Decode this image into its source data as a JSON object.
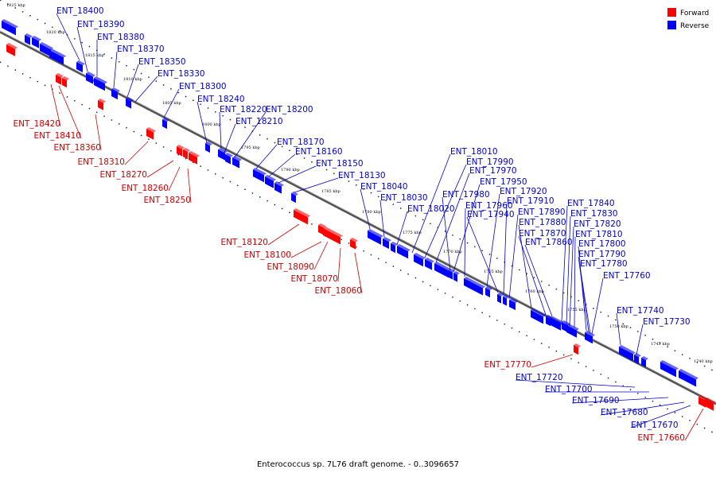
{
  "caption": "Enterococcus sp. 7L76 draft genome. - 0..3096657",
  "legend": [
    {
      "label": "Forward",
      "color": "#ff0000"
    },
    {
      "label": "Reverse",
      "color": "#0000ff"
    }
  ],
  "strand_colors": {
    "forward": "#ff0000",
    "reverse": "#0000ff",
    "forward_label": "#cc0000",
    "reverse_label": "#0000cc"
  },
  "ticks": [
    "1825 kbp",
    "1820 kbp",
    "1815 kbp",
    "1810 kbp",
    "1805 kbp",
    "1800 kbp",
    "1795 kbp",
    "1790 kbp",
    "1785 kbp",
    "1780 kbp",
    "1775 kbp",
    "1770 kbp",
    "1765 kbp",
    "1760 kbp",
    "1755 kbp",
    "1750 kbp",
    "1745 kbp",
    "1740 kbp"
  ],
  "reverse_genes": [
    "ENT_18400",
    "ENT_18390",
    "ENT_18380",
    "ENT_18370",
    "ENT_18350",
    "ENT_18330",
    "ENT_18300",
    "ENT_18240",
    "ENT_18220",
    "ENT_18210",
    "ENT_18200",
    "ENT_18170",
    "ENT_18160",
    "ENT_18150",
    "ENT_18130",
    "ENT_18040",
    "ENT_18030",
    "ENT_18020",
    "ENT_18010",
    "ENT_17990",
    "ENT_17970",
    "ENT_17980",
    "ENT_17950",
    "ENT_17960",
    "ENT_17920",
    "ENT_17940",
    "ENT_17910",
    "ENT_17890",
    "ENT_17880",
    "ENT_17870",
    "ENT_17860",
    "ENT_17840",
    "ENT_17830",
    "ENT_17820",
    "ENT_17810",
    "ENT_17800",
    "ENT_17790",
    "ENT_17780",
    "ENT_17760",
    "ENT_17740",
    "ENT_17730"
  ],
  "reverse_genes_lower": [
    "ENT_17720",
    "ENT_17700",
    "ENT_17690",
    "ENT_17680",
    "ENT_17670"
  ],
  "forward_genes": [
    "ENT_18420",
    "ENT_18410",
    "ENT_18360",
    "ENT_18310",
    "ENT_18270",
    "ENT_18260",
    "ENT_18250",
    "ENT_18120",
    "ENT_18100",
    "ENT_18090",
    "ENT_18070",
    "ENT_18060",
    "ENT_17770",
    "ENT_17660"
  ]
}
